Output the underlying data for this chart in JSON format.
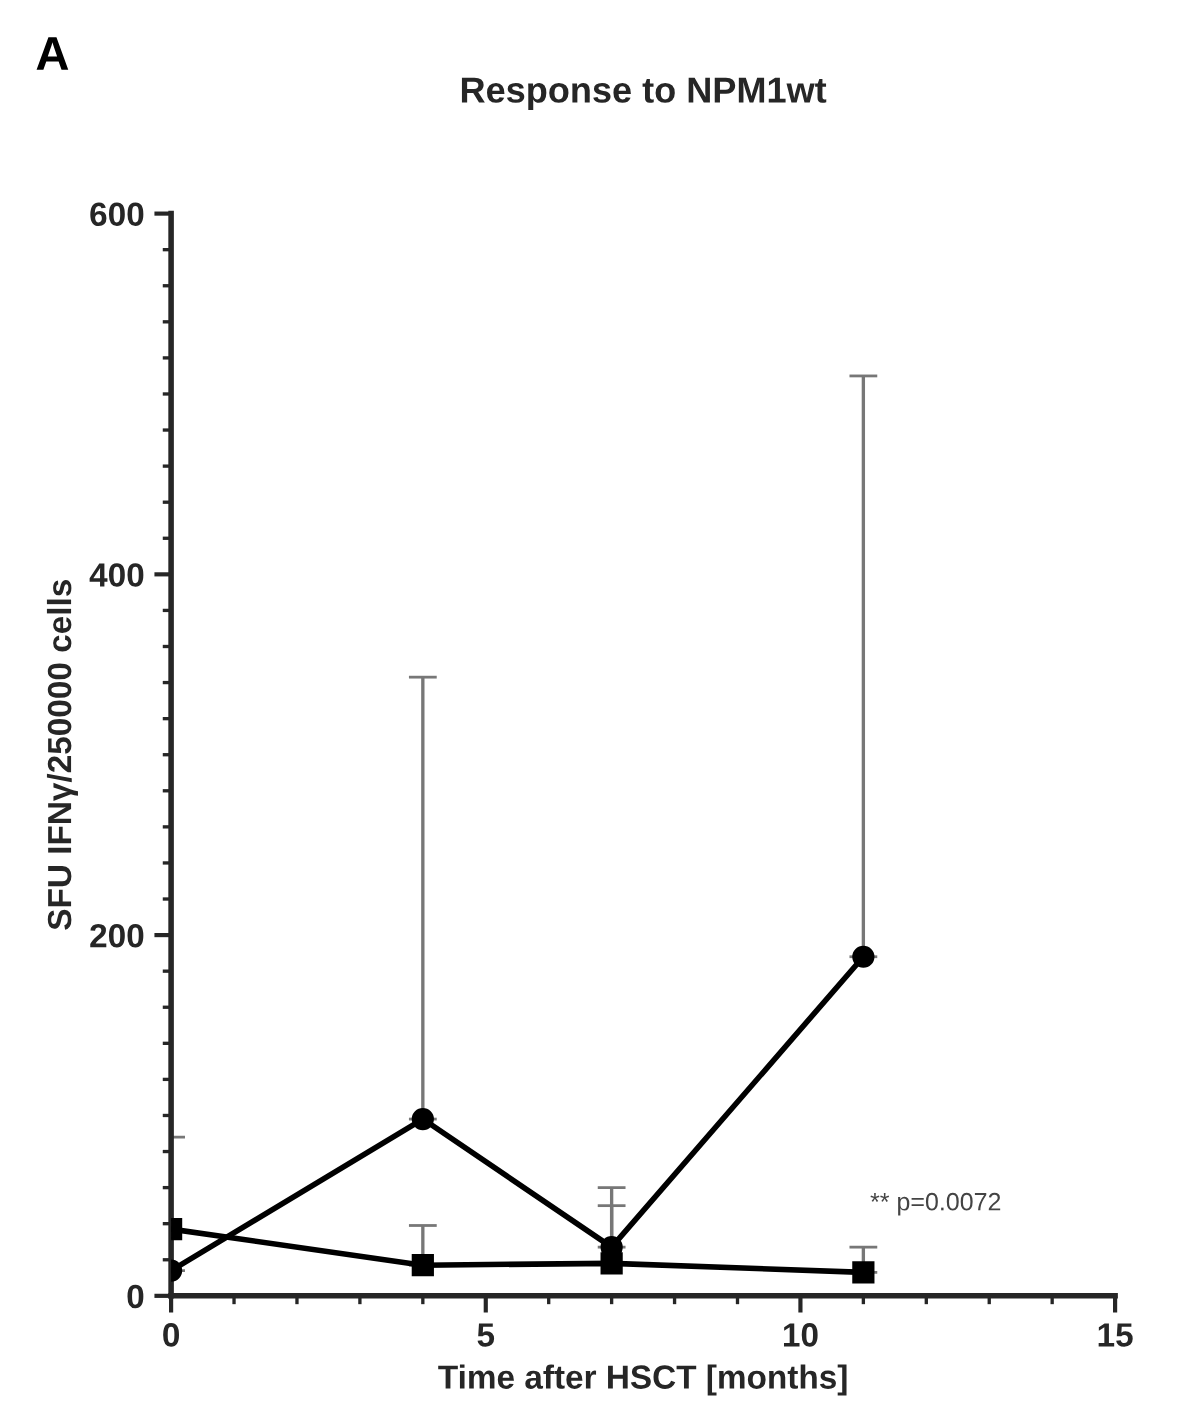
{
  "chart_data": {
    "type": "line",
    "title": "Response to NPM1wt",
    "xlabel": "Time after HSCT [months]",
    "ylabel": "SFU IFNγ/250000 cells",
    "annotations": [
      "A",
      "** p=0.0072"
    ],
    "xlim": [
      0,
      15
    ],
    "xticks": [
      0,
      5,
      10,
      15
    ],
    "ylim": [
      0,
      600
    ],
    "yticks": [
      0,
      200,
      400,
      600
    ],
    "grid": false,
    "series": [
      {
        "color": "#000000",
        "marker": "circle",
        "x": [
          0,
          4,
          7,
          11
        ],
        "values": [
          14,
          98,
          27,
          188
        ],
        "errors": [
          [
            14,
            88
          ],
          [
            98,
            343
          ],
          [
            27,
            60
          ],
          [
            188,
            510
          ]
        ]
      },
      {
        "color": "#000000",
        "marker": "square",
        "x": [
          0,
          4,
          7,
          11
        ],
        "values": [
          37,
          17,
          18,
          13
        ],
        "errors": [
          null,
          [
            17,
            39
          ],
          [
            18,
            50
          ],
          [
            13,
            27
          ]
        ]
      }
    ]
  }
}
